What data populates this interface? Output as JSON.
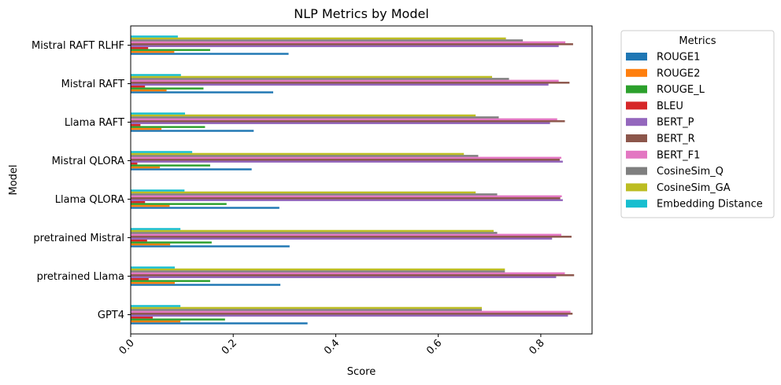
{
  "chart_data": {
    "type": "bar",
    "orientation": "horizontal",
    "title": "NLP Metrics by Model",
    "xlabel": "Score",
    "ylabel": "Model",
    "xlim": [
      0,
      0.9
    ],
    "xticks": [
      "0.0",
      "0.2",
      "0.4",
      "0.6",
      "0.8"
    ],
    "xtick_values": [
      0.0,
      0.2,
      0.4,
      0.6,
      0.8
    ],
    "legend_title": "Metrics",
    "legend_location": "outside-right",
    "categories": [
      "GPT4",
      "pretrained Llama",
      "pretrained Mistral",
      "Llama QLORA",
      "Mistral QLORA",
      "Llama RAFT",
      "Mistral RAFT",
      "Mistral RAFT RLHF"
    ],
    "series": [
      {
        "name": "ROUGE1",
        "color": "#1f77b4",
        "values": [
          0.345,
          0.292,
          0.31,
          0.29,
          0.236,
          0.24,
          0.278,
          0.308
        ]
      },
      {
        "name": "ROUGE2",
        "color": "#ff7f0e",
        "values": [
          0.097,
          0.086,
          0.077,
          0.076,
          0.057,
          0.06,
          0.07,
          0.085
        ]
      },
      {
        "name": "ROUGE_L",
        "color": "#2ca02c",
        "values": [
          0.184,
          0.155,
          0.158,
          0.187,
          0.155,
          0.145,
          0.142,
          0.155
        ]
      },
      {
        "name": "BLEU",
        "color": "#d62728",
        "values": [
          0.043,
          0.035,
          0.032,
          0.028,
          0.013,
          0.019,
          0.028,
          0.034
        ]
      },
      {
        "name": "BERT_P",
        "color": "#9467bd",
        "values": [
          0.853,
          0.83,
          0.822,
          0.843,
          0.843,
          0.818,
          0.815,
          0.835
        ]
      },
      {
        "name": "BERT_R",
        "color": "#8c564b",
        "values": [
          0.862,
          0.865,
          0.86,
          0.838,
          0.837,
          0.847,
          0.856,
          0.863
        ]
      },
      {
        "name": "BERT_F1",
        "color": "#e377c2",
        "values": [
          0.858,
          0.847,
          0.84,
          0.841,
          0.84,
          0.832,
          0.835,
          0.848
        ]
      },
      {
        "name": "CosineSim_Q",
        "color": "#7f7f7f",
        "values": [
          0.685,
          0.73,
          0.715,
          0.715,
          0.678,
          0.718,
          0.738,
          0.765
        ]
      },
      {
        "name": "CosineSim_GA",
        "color": "#bcbd22",
        "values": [
          0.685,
          0.73,
          0.708,
          0.673,
          0.65,
          0.673,
          0.705,
          0.732
        ]
      },
      {
        "name": "Embedding Distance",
        "color": "#17becf",
        "values": [
          0.097,
          0.086,
          0.097,
          0.105,
          0.12,
          0.106,
          0.098,
          0.092
        ]
      }
    ]
  }
}
